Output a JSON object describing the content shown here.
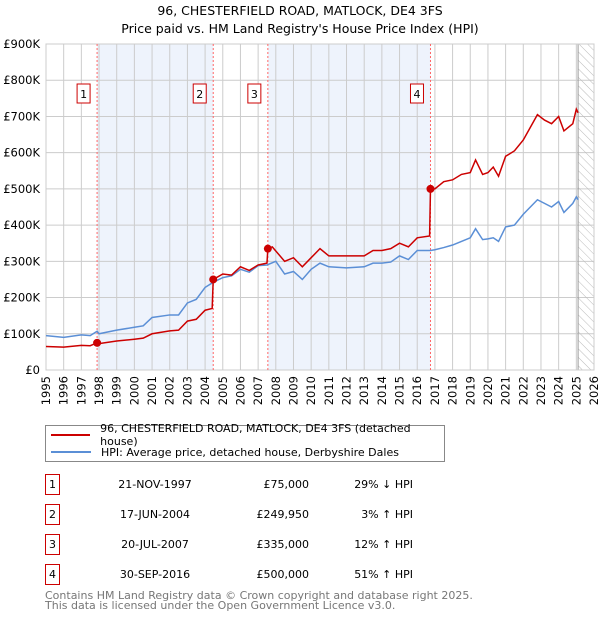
{
  "chart_data": {
    "type": "line",
    "title": "96, CHESTERFIELD ROAD, MATLOCK, DE4 3FS",
    "subtitle": "Price paid vs. HM Land Registry's House Price Index (HPI)",
    "xlim": [
      1995,
      2026
    ],
    "ylim": [
      0,
      900000
    ],
    "x_ticks": [
      "1995",
      "1996",
      "1997",
      "1998",
      "1999",
      "2000",
      "2001",
      "2002",
      "2003",
      "2004",
      "2005",
      "2006",
      "2007",
      "2008",
      "2009",
      "2010",
      "2011",
      "2012",
      "2013",
      "2014",
      "2015",
      "2016",
      "2017",
      "2018",
      "2019",
      "2020",
      "2021",
      "2022",
      "2023",
      "2024",
      "2025",
      "2026"
    ],
    "y_ticks": [
      {
        "v": 0,
        "label": "£0"
      },
      {
        "v": 100000,
        "label": "£100K"
      },
      {
        "v": 200000,
        "label": "£200K"
      },
      {
        "v": 300000,
        "label": "£300K"
      },
      {
        "v": 400000,
        "label": "£400K"
      },
      {
        "v": 500000,
        "label": "£500K"
      },
      {
        "v": 600000,
        "label": "£600K"
      },
      {
        "v": 700000,
        "label": "£700K"
      },
      {
        "v": 800000,
        "label": "£800K"
      },
      {
        "v": 900000,
        "label": "£900K"
      }
    ],
    "grid": true,
    "forecast_start": 2025.1,
    "shaded_ranges": [
      [
        1997.89,
        2004.46
      ],
      [
        2007.55,
        2016.75
      ]
    ],
    "series": [
      {
        "name": "96, CHESTERFIELD ROAD, MATLOCK, DE4 3FS (detached house)",
        "color": "#cc0000",
        "points": [
          [
            1995,
            65000
          ],
          [
            1996,
            63000
          ],
          [
            1997,
            68000
          ],
          [
            1997.5,
            67000
          ],
          [
            1997.89,
            75000
          ],
          [
            1998,
            73000
          ],
          [
            1999,
            80000
          ],
          [
            2000,
            85000
          ],
          [
            2000.5,
            88000
          ],
          [
            2001,
            100000
          ],
          [
            2002,
            108000
          ],
          [
            2002.5,
            110000
          ],
          [
            2003,
            135000
          ],
          [
            2003.5,
            140000
          ],
          [
            2004,
            165000
          ],
          [
            2004.4,
            170000
          ],
          [
            2004.46,
            250000
          ],
          [
            2005,
            265000
          ],
          [
            2005.5,
            262000
          ],
          [
            2006,
            285000
          ],
          [
            2006.5,
            275000
          ],
          [
            2007,
            290000
          ],
          [
            2007.5,
            295000
          ],
          [
            2007.55,
            335000
          ],
          [
            2007.8,
            340000
          ],
          [
            2008.5,
            300000
          ],
          [
            2009,
            310000
          ],
          [
            2009.5,
            285000
          ],
          [
            2010,
            310000
          ],
          [
            2010.5,
            335000
          ],
          [
            2011,
            315000
          ],
          [
            2012,
            315000
          ],
          [
            2013,
            315000
          ],
          [
            2013.5,
            330000
          ],
          [
            2014,
            330000
          ],
          [
            2014.5,
            335000
          ],
          [
            2015,
            350000
          ],
          [
            2015.5,
            340000
          ],
          [
            2016,
            365000
          ],
          [
            2016.7,
            370000
          ],
          [
            2016.75,
            500000
          ],
          [
            2017,
            500000
          ],
          [
            2017.5,
            520000
          ],
          [
            2018,
            525000
          ],
          [
            2018.5,
            540000
          ],
          [
            2019,
            545000
          ],
          [
            2019.3,
            580000
          ],
          [
            2019.7,
            540000
          ],
          [
            2020,
            545000
          ],
          [
            2020.3,
            560000
          ],
          [
            2020.6,
            535000
          ],
          [
            2021,
            590000
          ],
          [
            2021.5,
            605000
          ],
          [
            2022,
            635000
          ],
          [
            2022.8,
            705000
          ],
          [
            2023.2,
            690000
          ],
          [
            2023.6,
            680000
          ],
          [
            2024,
            700000
          ],
          [
            2024.3,
            660000
          ],
          [
            2024.8,
            680000
          ],
          [
            2025,
            720000
          ],
          [
            2025.1,
            710000
          ]
        ]
      },
      {
        "name": "HPI: Average price, detached house, Derbyshire Dales",
        "color": "#5b8fd6",
        "points": [
          [
            1995,
            95000
          ],
          [
            1996,
            90000
          ],
          [
            1997,
            97000
          ],
          [
            1997.5,
            95000
          ],
          [
            1997.89,
            107000
          ],
          [
            1998,
            100000
          ],
          [
            1999,
            110000
          ],
          [
            2000,
            118000
          ],
          [
            2000.5,
            122000
          ],
          [
            2001,
            145000
          ],
          [
            2002,
            152000
          ],
          [
            2002.5,
            152000
          ],
          [
            2003,
            185000
          ],
          [
            2003.5,
            195000
          ],
          [
            2004,
            228000
          ],
          [
            2004.46,
            242000
          ],
          [
            2005,
            255000
          ],
          [
            2005.5,
            260000
          ],
          [
            2006,
            278000
          ],
          [
            2006.5,
            270000
          ],
          [
            2007,
            288000
          ],
          [
            2007.5,
            290000
          ],
          [
            2008,
            300000
          ],
          [
            2008.5,
            265000
          ],
          [
            2009,
            272000
          ],
          [
            2009.5,
            250000
          ],
          [
            2010,
            278000
          ],
          [
            2010.5,
            295000
          ],
          [
            2011,
            285000
          ],
          [
            2012,
            282000
          ],
          [
            2013,
            285000
          ],
          [
            2013.5,
            295000
          ],
          [
            2014,
            295000
          ],
          [
            2014.5,
            298000
          ],
          [
            2015,
            315000
          ],
          [
            2015.5,
            305000
          ],
          [
            2016,
            330000
          ],
          [
            2016.75,
            330000
          ],
          [
            2017,
            332000
          ],
          [
            2017.5,
            338000
          ],
          [
            2018,
            345000
          ],
          [
            2018.5,
            355000
          ],
          [
            2019,
            365000
          ],
          [
            2019.3,
            390000
          ],
          [
            2019.7,
            360000
          ],
          [
            2020,
            362000
          ],
          [
            2020.3,
            365000
          ],
          [
            2020.6,
            355000
          ],
          [
            2021,
            395000
          ],
          [
            2021.5,
            400000
          ],
          [
            2022,
            430000
          ],
          [
            2022.8,
            470000
          ],
          [
            2023.2,
            460000
          ],
          [
            2023.6,
            450000
          ],
          [
            2024,
            465000
          ],
          [
            2024.3,
            435000
          ],
          [
            2024.8,
            460000
          ],
          [
            2025,
            478000
          ],
          [
            2025.1,
            470000
          ]
        ]
      }
    ],
    "sales": [
      {
        "label": "1",
        "x": 1997.89,
        "y": 75000,
        "date": "21-NOV-1997",
        "price": "£75,000",
        "hpi": "29% ↓ HPI"
      },
      {
        "label": "2",
        "x": 2004.46,
        "y": 249950,
        "date": "17-JUN-2004",
        "price": "£249,950",
        "hpi": "3% ↑ HPI"
      },
      {
        "label": "3",
        "x": 2007.55,
        "y": 335000,
        "date": "20-JUL-2007",
        "price": "£335,000",
        "hpi": "12% ↑ HPI"
      },
      {
        "label": "4",
        "x": 2016.75,
        "y": 500000,
        "date": "30-SEP-2016",
        "price": "£500,000",
        "hpi": "51% ↑ HPI"
      }
    ]
  },
  "footer": {
    "line1": "Contains HM Land Registry data © Crown copyright and database right 2025.",
    "line2": "This data is licensed under the Open Government Licence v3.0."
  }
}
